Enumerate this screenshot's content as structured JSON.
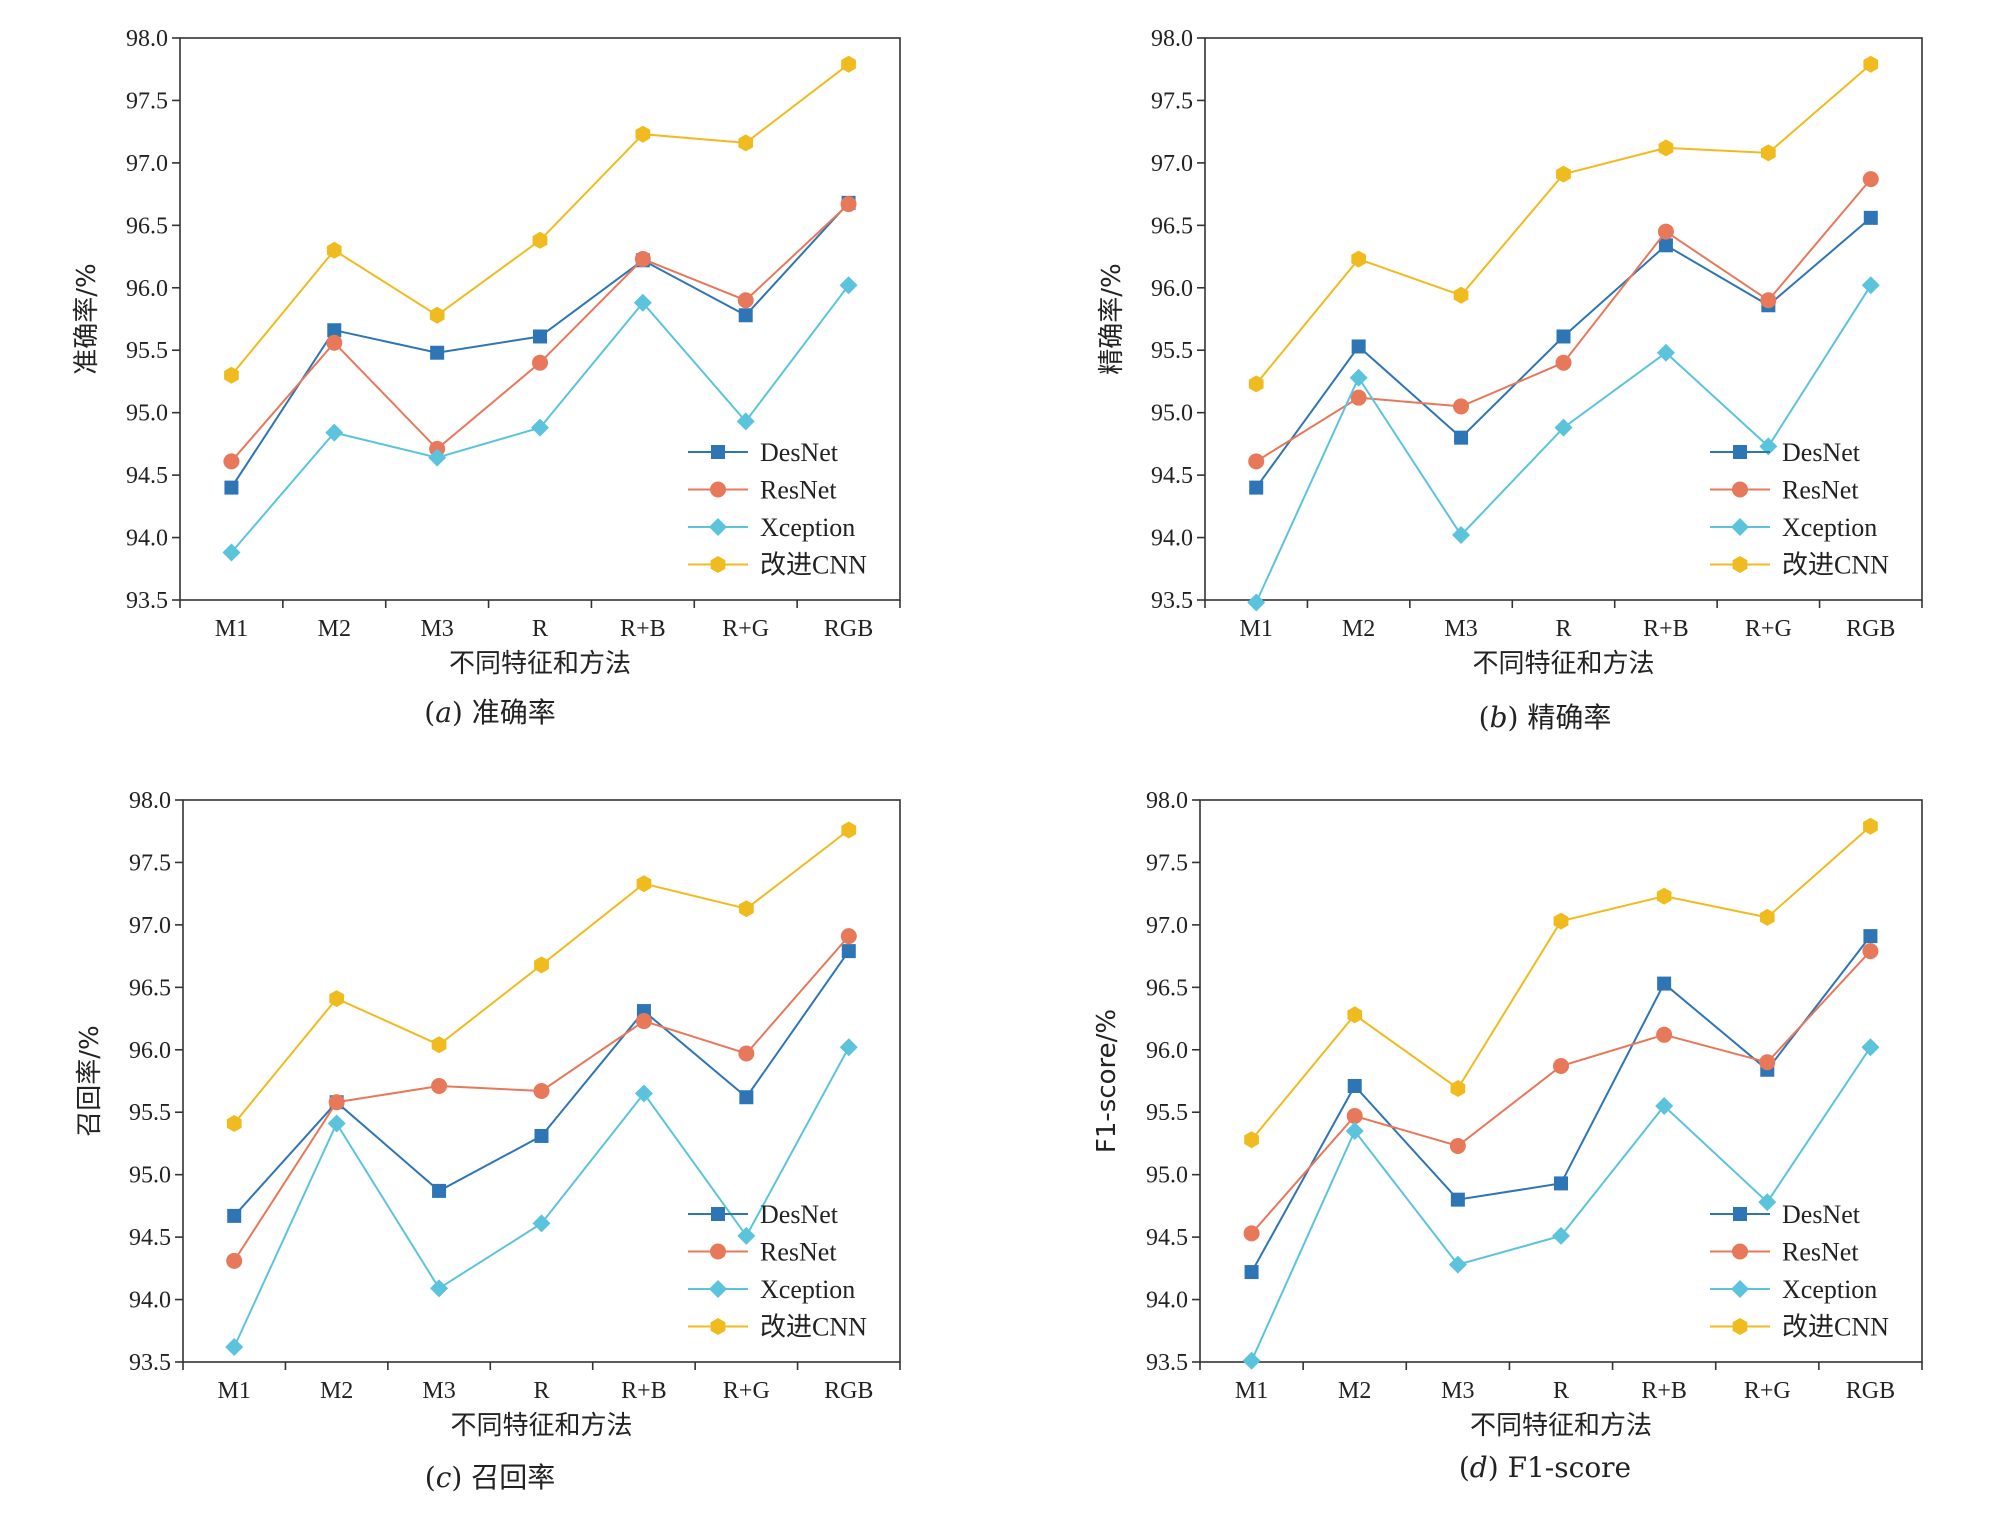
{
  "colors": {
    "DesNet": "#2e75b6",
    "ResNet": "#e8785a",
    "Xception": "#5bc4dc",
    "CNN": "#f0bb1e"
  },
  "chart_data": [
    {
      "type": "line",
      "caption_letter": "a",
      "caption_text": "准确率",
      "xlabel": "不同特征和方法",
      "ylabel": "准确率/%",
      "ylim": [
        93.5,
        98.0
      ],
      "yticks": [
        "93.5",
        "94.0",
        "94.5",
        "95.0",
        "95.5",
        "96.0",
        "96.5",
        "97.0",
        "97.5",
        "98.0"
      ],
      "categories": [
        "M1",
        "M2",
        "M3",
        "R",
        "R+B",
        "R+G",
        "RGB"
      ],
      "legend_position": "bottom-right",
      "series": [
        {
          "name": "DesNet",
          "marker": "square",
          "values": [
            94.4,
            95.66,
            95.48,
            95.61,
            96.22,
            95.78,
            96.68
          ]
        },
        {
          "name": "ResNet",
          "marker": "circle",
          "values": [
            94.61,
            95.56,
            94.71,
            95.4,
            96.23,
            95.9,
            96.67
          ]
        },
        {
          "name": "Xception",
          "marker": "diamond",
          "values": [
            93.88,
            94.84,
            94.64,
            94.88,
            95.88,
            94.93,
            96.02
          ]
        },
        {
          "name": "改进CNN",
          "marker": "hexagon",
          "values": [
            95.3,
            96.3,
            95.78,
            96.38,
            97.23,
            97.16,
            97.79
          ]
        }
      ]
    },
    {
      "type": "line",
      "caption_letter": "b",
      "caption_text": "精确率",
      "xlabel": "不同特征和方法",
      "ylabel": "精确率/%",
      "ylim": [
        93.5,
        98.0
      ],
      "yticks": [
        "93.5",
        "94.0",
        "94.5",
        "95.0",
        "95.5",
        "96.0",
        "96.5",
        "97.0",
        "97.5",
        "98.0"
      ],
      "categories": [
        "M1",
        "M2",
        "M3",
        "R",
        "R+B",
        "R+G",
        "RGB"
      ],
      "legend_position": "bottom-right",
      "series": [
        {
          "name": "DesNet",
          "marker": "square",
          "values": [
            94.4,
            95.53,
            94.8,
            95.61,
            96.34,
            95.86,
            96.56
          ]
        },
        {
          "name": "ResNet",
          "marker": "circle",
          "values": [
            94.61,
            95.12,
            95.05,
            95.4,
            96.45,
            95.9,
            96.87
          ]
        },
        {
          "name": "Xception",
          "marker": "diamond",
          "values": [
            93.48,
            95.28,
            94.02,
            94.88,
            95.48,
            94.73,
            96.02
          ]
        },
        {
          "name": "改进CNN",
          "marker": "hexagon",
          "values": [
            95.23,
            96.23,
            95.94,
            96.91,
            97.12,
            97.08,
            97.79
          ]
        }
      ]
    },
    {
      "type": "line",
      "caption_letter": "c",
      "caption_text": "召回率",
      "xlabel": "不同特征和方法",
      "ylabel": "召回率/%",
      "ylim": [
        93.5,
        98.0
      ],
      "yticks": [
        "93.5",
        "94.0",
        "94.5",
        "95.0",
        "95.5",
        "96.0",
        "96.5",
        "97.0",
        "97.5",
        "98.0"
      ],
      "categories": [
        "M1",
        "M2",
        "M3",
        "R",
        "R+B",
        "R+G",
        "RGB"
      ],
      "legend_position": "bottom-right",
      "series": [
        {
          "name": "DesNet",
          "marker": "square",
          "values": [
            94.67,
            95.58,
            94.87,
            95.31,
            96.31,
            95.62,
            96.79
          ]
        },
        {
          "name": "ResNet",
          "marker": "circle",
          "values": [
            94.31,
            95.58,
            95.71,
            95.67,
            96.23,
            95.97,
            96.91
          ]
        },
        {
          "name": "Xception",
          "marker": "diamond",
          "values": [
            93.62,
            95.41,
            94.09,
            94.61,
            95.65,
            94.51,
            96.02
          ]
        },
        {
          "name": "改进CNN",
          "marker": "hexagon",
          "values": [
            95.41,
            96.41,
            96.04,
            96.68,
            97.33,
            97.13,
            97.76
          ]
        }
      ]
    },
    {
      "type": "line",
      "caption_letter": "d",
      "caption_text": "F1-score",
      "xlabel": "不同特征和方法",
      "ylabel": "F1-score/%",
      "ylim": [
        93.5,
        98.0
      ],
      "yticks": [
        "93.5",
        "94.0",
        "94.5",
        "95.0",
        "95.5",
        "96.0",
        "96.5",
        "97.0",
        "97.5",
        "98.0"
      ],
      "categories": [
        "M1",
        "M2",
        "M3",
        "R",
        "R+B",
        "R+G",
        "RGB"
      ],
      "legend_position": "bottom-right",
      "series": [
        {
          "name": "DesNet",
          "marker": "square",
          "values": [
            94.22,
            95.71,
            94.8,
            94.93,
            96.53,
            95.84,
            96.91
          ]
        },
        {
          "name": "ResNet",
          "marker": "circle",
          "values": [
            94.53,
            95.47,
            95.23,
            95.87,
            96.12,
            95.9,
            96.79
          ]
        },
        {
          "name": "Xception",
          "marker": "diamond",
          "values": [
            93.51,
            95.35,
            94.28,
            94.51,
            95.55,
            94.78,
            96.02
          ]
        },
        {
          "name": "改进CNN",
          "marker": "hexagon",
          "values": [
            95.28,
            96.28,
            95.69,
            97.03,
            97.23,
            97.06,
            97.79
          ]
        }
      ]
    }
  ]
}
